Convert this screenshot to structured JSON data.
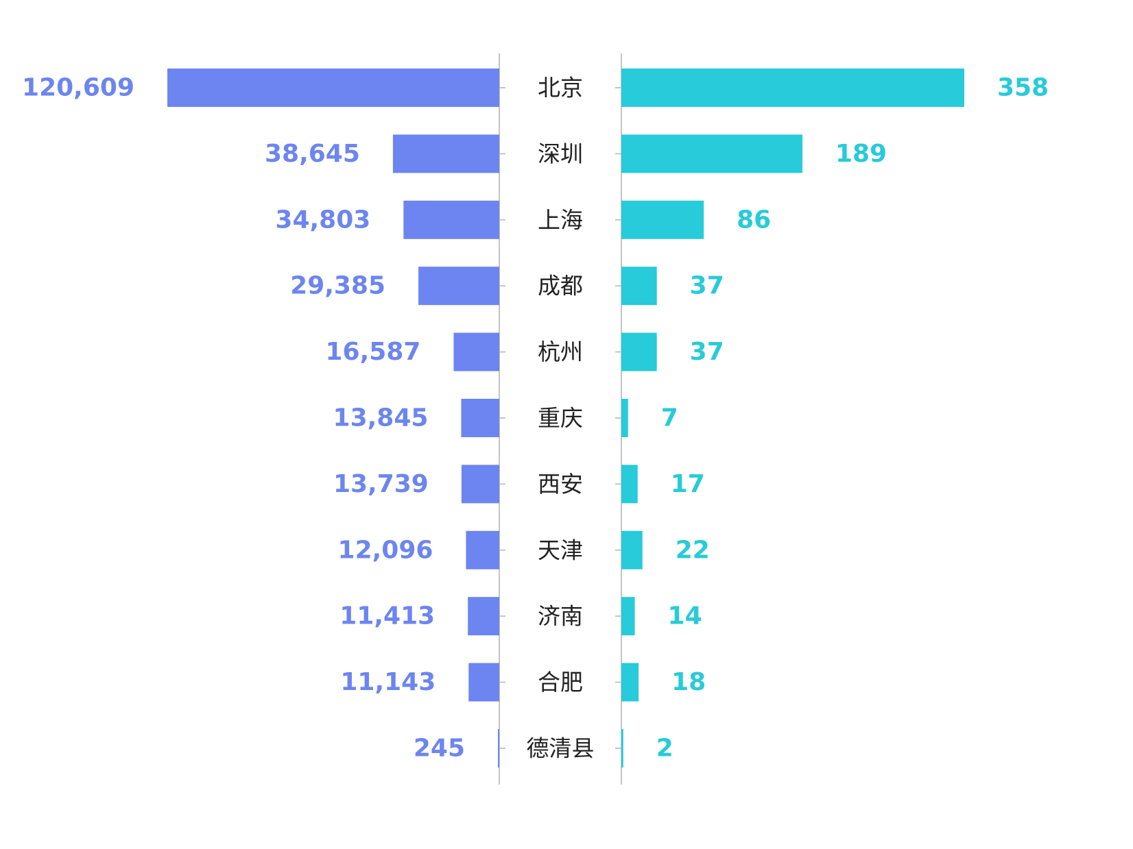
{
  "chart_data": {
    "type": "bar",
    "layout": "butterfly",
    "categories": [
      "北京",
      "深圳",
      "上海",
      "成都",
      "杭州",
      "重庆",
      "西安",
      "天津",
      "济南",
      "合肥",
      "德清县"
    ],
    "series": [
      {
        "side": "left",
        "color": "#6c85f0",
        "values": [
          120609,
          38645,
          34803,
          29385,
          16587,
          13845,
          13739,
          12096,
          11413,
          11143,
          245
        ],
        "labels": [
          "120,609",
          "38,645",
          "34,803",
          "29,385",
          "16,587",
          "13,845",
          "13,739",
          "12,096",
          "11,413",
          "11,143",
          "245"
        ]
      },
      {
        "side": "right",
        "color": "#27cbd9",
        "values": [
          358,
          189,
          86,
          37,
          37,
          7,
          17,
          22,
          14,
          18,
          2
        ],
        "labels": [
          "358",
          "189",
          "86",
          "37",
          "37",
          "7",
          "17",
          "22",
          "14",
          "18",
          "2"
        ]
      }
    ],
    "title": "",
    "legend": "none",
    "grid": false
  }
}
